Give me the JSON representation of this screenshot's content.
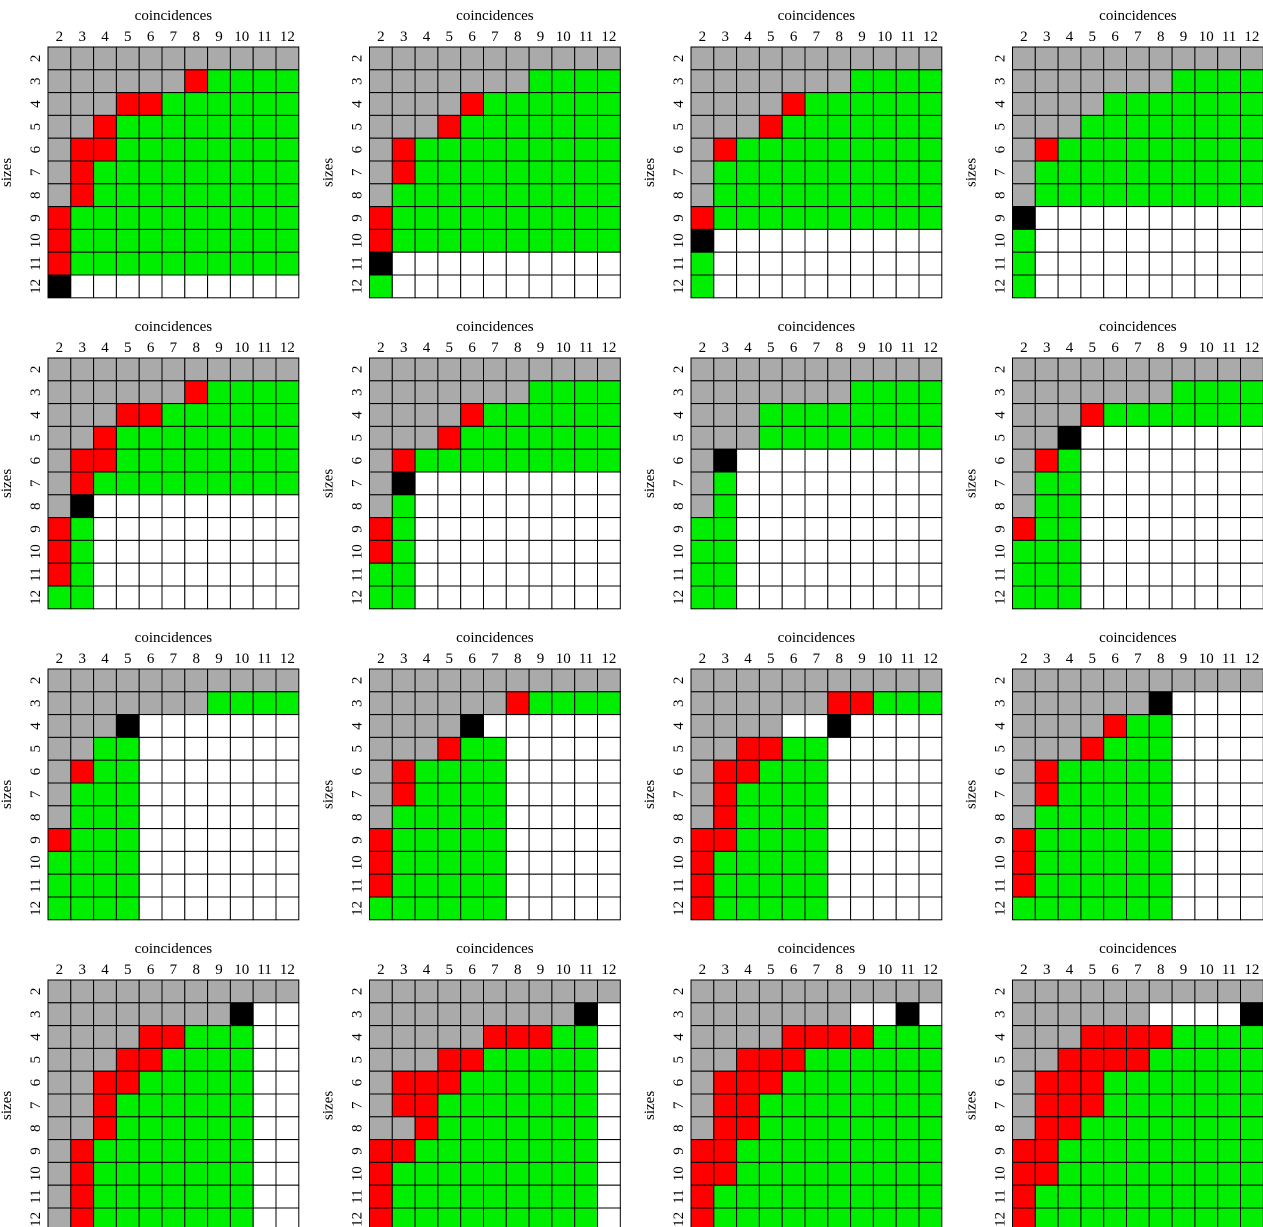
{
  "legend_colors": {
    "g": "#aaaaaa",
    "r": "#ff0000",
    "G": "#00ee00",
    "k": "#000000",
    "w": "#ffffff"
  },
  "chart_data": {
    "type": "heatmap",
    "layout": {
      "rows": 4,
      "cols": 4
    },
    "xlabel": "coincidences",
    "ylabel": "sizes",
    "x_ticks": [
      "2",
      "3",
      "4",
      "5",
      "6",
      "7",
      "8",
      "9",
      "10",
      "11",
      "12"
    ],
    "y_ticks": [
      "2",
      "3",
      "4",
      "5",
      "6",
      "7",
      "8",
      "9",
      "10",
      "11",
      "12"
    ],
    "cell_legend": {
      "g": "gray",
      "r": "red",
      "G": "green",
      "k": "black",
      "w": "white"
    },
    "panels": [
      [
        "ggggggggggg",
        "ggggggrGGGG",
        "gggrrGGGGGG",
        "ggrGGGGGGGG",
        "grrGGGGGGGG",
        "grGGGGGGGGG",
        "grGGGGGGGGG",
        "rGGGGGGGGGG",
        "rGGGGGGGGGG",
        "rGGGGGGGGGG",
        "kwwwwwwwwww"
      ],
      [
        "ggggggggggg",
        "gggggggGGGG",
        "ggggrGGGGGG",
        "gggrGGGGGGG",
        "grGGGGGGGGG",
        "grGGGGGGGGG",
        "gGGGGGGGGGG",
        "rGGGGGGGGGG",
        "rGGGGGGGGGG",
        "kwwwwwwwwww",
        "Gwwwwwwwwww"
      ],
      [
        "ggggggggggg",
        "gggggggGGGG",
        "ggggrGGGGGG",
        "gggrGGGGGGG",
        "grGGGGGGGGG",
        "gGGGGGGGGGG",
        "gGGGGGGGGGG",
        "rGGGGGGGGGG",
        "kwwwwwwwwww",
        "Gwwwwwwwwww",
        "Gwwwwwwwwww"
      ],
      [
        "ggggggggggg",
        "gggggggGGGG",
        "ggggGGGGGGG",
        "gggGGGGGGGG",
        "grGGGGGGGGG",
        "gGGGGGGGGGG",
        "gGGGGGGGGGG",
        "kwwwwwwwwww",
        "Gwwwwwwwwww",
        "Gwwwwwwwwww",
        "Gwwwwwwwwww"
      ],
      [
        "ggggggggggg",
        "ggggggrGGGG",
        "gggrrGGGGGG",
        "ggrGGGGGGGG",
        "grrGGGGGGGG",
        "grGGGGGGGGG",
        "gkwwwwwwwww",
        "rGwwwwwwwww",
        "rGwwwwwwwww",
        "rGwwwwwwwww",
        "GGwwwwwwwww"
      ],
      [
        "ggggggggggg",
        "gggggggGGGG",
        "ggggrGGGGGG",
        "gggrGGGGGGG",
        "grGGGGGGGGG",
        "gkwwwwwwwww",
        "gGwwwwwwwww",
        "rGwwwwwwwww",
        "rGwwwwwwwww",
        "GGwwwwwwwww",
        "GGwwwwwwwww"
      ],
      [
        "ggggggggggg",
        "gggggggGGGG",
        "gggGGGGGGGG",
        "gggGGGGGGGG",
        "gkwwwwwwwww",
        "gGwwwwwwwww",
        "gGwwwwwwwww",
        "GGwwwwwwwww",
        "GGwwwwwwwww",
        "GGwwwwwwwww",
        "GGwwwwwwwww"
      ],
      [
        "ggggggggggg",
        "gggggggGGGG",
        "gggrGGGGGGG",
        "ggkwwwwwwww",
        "grGwwwwwwww",
        "gGGwwwwwwww",
        "gGGwwwwwwww",
        "rGGwwwwwwww",
        "GGGwwwwwwww",
        "GGGwwwwwwww",
        "GGGwwwwwwww"
      ],
      [
        "ggggggggggg",
        "gggggggGGGG",
        "gggkwwwwwww",
        "ggGGwwwwwww",
        "grGGwwwwwww",
        "gGGGwwwwwww",
        "gGGGwwwwwww",
        "rGGGwwwwwww",
        "GGGGwwwwwww",
        "GGGGwwwwwww",
        "GGGGwwwwwww"
      ],
      [
        "ggggggggggg",
        "ggggggrGGGG",
        "ggggkwwwwww",
        "gggrGGwwwww",
        "grGGGGwwwww",
        "grGGGGwwwww",
        "gGGGGGwwwww",
        "rGGGGGwwwww",
        "rGGGGGwwwww",
        "rGGGGGwwwww",
        "GGGGGGwwwww"
      ],
      [
        "ggggggggggg",
        "ggggggrrGGG",
        "ggggwwkwwww",
        "ggrrGGwwwww",
        "grrGGGwwwww",
        "grGGGGwwwww",
        "grGGGGwwwww",
        "rrGGGGwwwww",
        "rGGGGGwwwww",
        "rGGGGGwwwww",
        "rGGGGGwwwww"
      ],
      [
        "ggggggggggg",
        "ggggggkwwww",
        "ggggrGGwwww",
        "gggrGGGwwww",
        "grGGGGGwwww",
        "grGGGGGwwww",
        "gGGGGGGwwww",
        "rGGGGGGwwww",
        "rGGGGGGwwww",
        "rGGGGGGwwww",
        "GGGGGGGwwww"
      ],
      [
        "ggggggggggg",
        "ggggggggkww",
        "ggggrrGGGww",
        "gggrrGGGGww",
        "ggrrGGGGGww",
        "ggrGGGGGGww",
        "ggrGGGGGGww",
        "grGGGGGGGww",
        "grGGGGGGGww",
        "grGGGGGGGww",
        "grGGGGGGGww"
      ],
      [
        "ggggggggggg",
        "gggggggggkw",
        "gggggrrrGGw",
        "gggrrGGGGGw",
        "grrrGGGGGGw",
        "grrGGGGGGGw",
        "ggrGGGGGGGw",
        "rrGGGGGGGGw",
        "rGGGGGGGGGw",
        "rGGGGGGGGGw",
        "rGGGGGGGGGw"
      ],
      [
        "ggggggggggg",
        "gggggggwwkw",
        "ggggrrrrGGG",
        "ggrrrGGGGGG",
        "grrrGGGGGGG",
        "grrGGGGGGGG",
        "grrGGGGGGGG",
        "rrGGGGGGGGG",
        "rrGGGGGGGGG",
        "rGGGGGGGGGG",
        "rGGGGGGGGGG"
      ],
      [
        "ggggggggggg",
        "ggggggwwwwk",
        "gggrrrrGGGG",
        "ggrrrrGGGGG",
        "grrrGGGGGGG",
        "grrrGGGGGGG",
        "grrGGGGGGGG",
        "rrGGGGGGGGG",
        "rrGGGGGGGGG",
        "rGGGGGGGGGG",
        "rGGGGGGGGGG"
      ]
    ]
  }
}
